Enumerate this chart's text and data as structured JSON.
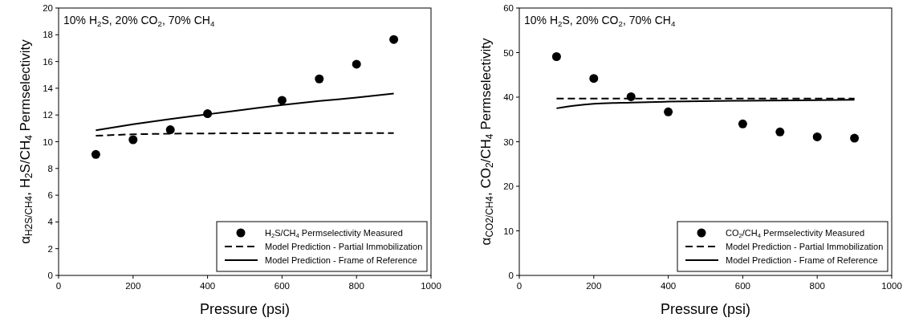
{
  "chart_data": [
    {
      "type": "scatter",
      "xlabel": "Pressure (psi)",
      "ylabel": "α$_{H2S/CH4}$, H$_{2}$S/CH$_{4}$ Permselectivity",
      "annotations": [
        "10% H$_{2}$S, 20% CO$_{2}$, 70% CH$_{4}$"
      ],
      "xlim": [
        0,
        1000
      ],
      "xticks": [
        0,
        200,
        400,
        600,
        800,
        1000
      ],
      "ylim": [
        0,
        20
      ],
      "yticks": [
        0,
        2,
        4,
        6,
        8,
        10,
        12,
        14,
        16,
        18,
        20
      ],
      "legend": "bottom right",
      "series": [
        {
          "name": "H$_{2}$S/CH$_{4}$ Permselectivity Measured",
          "marker": "circle",
          "color": "#000000",
          "x": [
            100,
            200,
            300,
            400,
            600,
            700,
            800,
            900
          ],
          "values": [
            9.05,
            10.15,
            10.9,
            12.1,
            13.1,
            14.7,
            15.8,
            17.65
          ]
        },
        {
          "name": "Model Prediction - Partial Immobilization",
          "type": "line",
          "line_style": "dashed",
          "color": "#000000",
          "x": [
            100,
            200,
            300,
            400,
            600,
            900
          ],
          "values": [
            10.45,
            10.55,
            10.6,
            10.62,
            10.64,
            10.65
          ]
        },
        {
          "name": "Model Prediction - Frame of Reference",
          "type": "line",
          "line_style": "solid",
          "color": "#000000",
          "x": [
            100,
            200,
            300,
            400,
            500,
            600,
            700,
            800,
            900
          ],
          "values": [
            10.85,
            11.3,
            11.7,
            12.05,
            12.4,
            12.75,
            13.05,
            13.3,
            13.6
          ]
        }
      ]
    },
    {
      "type": "scatter",
      "xlabel": "Pressure (psi)",
      "ylabel": "α$_{CO2/CH4}$, CO$_{2}$/CH$_{4}$ Permselectivity",
      "annotations": [
        "10% H$_{2}$S, 20% CO$_{2}$, 70% CH$_{4}$"
      ],
      "xlim": [
        0,
        1000
      ],
      "xticks": [
        0,
        200,
        400,
        600,
        800,
        1000
      ],
      "ylim": [
        0,
        60
      ],
      "yticks": [
        0,
        10,
        20,
        30,
        40,
        50,
        60
      ],
      "legend": "bottom right",
      "series": [
        {
          "name": "CO$_{2}$/CH$_{4}$ Permselectivity Measured",
          "marker": "circle",
          "color": "#000000",
          "x": [
            100,
            200,
            300,
            400,
            600,
            700,
            800,
            900
          ],
          "values": [
            49.1,
            44.2,
            40.1,
            36.7,
            34.0,
            32.2,
            31.1,
            30.8
          ]
        },
        {
          "name": "Model Prediction - Partial Immobilization",
          "type": "line",
          "line_style": "dashed",
          "color": "#000000",
          "x": [
            100,
            900
          ],
          "values": [
            39.7,
            39.7
          ]
        },
        {
          "name": "Model Prediction - Frame of Reference",
          "type": "line",
          "line_style": "solid",
          "color": "#000000",
          "x": [
            100,
            150,
            200,
            300,
            400,
            600,
            900
          ],
          "values": [
            37.5,
            38.1,
            38.5,
            38.8,
            39.0,
            39.2,
            39.4
          ]
        }
      ]
    }
  ]
}
